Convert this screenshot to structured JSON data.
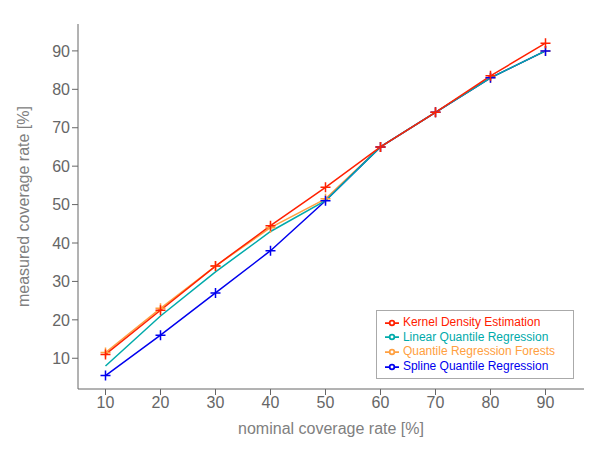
{
  "chart_data": {
    "type": "line",
    "xlabel": "nominal coverage rate [%]",
    "ylabel": "measured coverage rate [%]",
    "x": [
      10,
      20,
      30,
      40,
      50,
      60,
      70,
      80,
      90
    ],
    "series": [
      {
        "name": "Quantile Regression Forests",
        "color": "#FFA040",
        "marker": "plus",
        "values": [
          11.5,
          23.0,
          34.0,
          44.0,
          51.5,
          65.0,
          74.0,
          83.0,
          90.0
        ]
      },
      {
        "name": "Spline Quantile Regression",
        "color": "#0000EE",
        "marker": "plus",
        "values": [
          5.5,
          16.0,
          27.0,
          38.0,
          51.0,
          65.0,
          74.0,
          83.0,
          90.0
        ]
      },
      {
        "name": "Linear Quantile Regression",
        "color": "#00AAAA",
        "marker": "none",
        "values": [
          8.0,
          21.0,
          32.5,
          43.0,
          51.0,
          65.0,
          74.0,
          83.0,
          90.0
        ]
      },
      {
        "name": "Kernel Density Estimation",
        "color": "#FF2000",
        "marker": "plus",
        "values": [
          11.0,
          22.5,
          34.0,
          44.5,
          54.5,
          65.0,
          74.0,
          83.5,
          92.0
        ]
      }
    ],
    "xlim": [
      5,
      97
    ],
    "ylim": [
      2,
      97
    ],
    "xticks": [
      10,
      20,
      30,
      40,
      50,
      60,
      70,
      80,
      90
    ],
    "yticks": [
      10,
      20,
      30,
      40,
      50,
      60,
      70,
      80,
      90
    ],
    "grid": false,
    "legend": "lower right"
  }
}
